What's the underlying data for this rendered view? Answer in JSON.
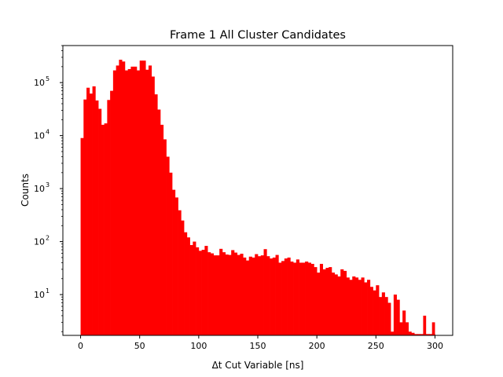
{
  "chart_data": {
    "type": "bar",
    "title": "Frame 1 All Cluster Candidates",
    "xlabel": "Δt Cut Variable [ns]",
    "ylabel": "Counts",
    "xlim": [
      -15,
      315
    ],
    "ylim": [
      1.7,
      500000
    ],
    "yscale": "log",
    "bin_width": 2.5,
    "bin_start": 0,
    "color": "#ff0000",
    "grid": false,
    "legend": "none",
    "x_ticks": [
      {
        "value": 0,
        "label": "0"
      },
      {
        "value": 50,
        "label": "50"
      },
      {
        "value": 100,
        "label": "100"
      },
      {
        "value": 150,
        "label": "150"
      },
      {
        "value": 200,
        "label": "200"
      },
      {
        "value": 250,
        "label": "250"
      },
      {
        "value": 300,
        "label": "300"
      }
    ],
    "y_ticks": [
      {
        "value": 10,
        "base": "10",
        "exp": "1"
      },
      {
        "value": 100,
        "base": "10",
        "exp": "2"
      },
      {
        "value": 1000,
        "base": "10",
        "exp": "3"
      },
      {
        "value": 10000,
        "base": "10",
        "exp": "4"
      },
      {
        "value": 100000,
        "base": "10",
        "exp": "5"
      }
    ],
    "values": [
      9000,
      48000,
      80000,
      62000,
      85000,
      46000,
      32000,
      16000,
      17000,
      47000,
      70000,
      170000,
      210000,
      270000,
      250000,
      170000,
      180000,
      200000,
      200000,
      170000,
      260000,
      260000,
      175000,
      210000,
      130000,
      60000,
      31000,
      16000,
      8500,
      4000,
      2000,
      950,
      680,
      390,
      250,
      150,
      120,
      86,
      100,
      78,
      67,
      70,
      83,
      63,
      60,
      55,
      55,
      73,
      63,
      57,
      56,
      69,
      62,
      56,
      59,
      50,
      44,
      52,
      50,
      58,
      53,
      55,
      72,
      53,
      48,
      50,
      56,
      40,
      43,
      48,
      50,
      42,
      40,
      46,
      40,
      40,
      42,
      40,
      38,
      33,
      26,
      38,
      30,
      32,
      33,
      26,
      24,
      22,
      30,
      28,
      21,
      19,
      22,
      21,
      19,
      21,
      17,
      19,
      14,
      12,
      15,
      9,
      11,
      9,
      7,
      2,
      10,
      8,
      3,
      5,
      3,
      2,
      1.9,
      1.8,
      1.8,
      1.8,
      1.8,
      1.8,
      1.8,
      1.8
    ],
    "sparse_tail": [
      {
        "x": 290,
        "value": 4
      },
      {
        "x": 297.5,
        "value": 3
      }
    ]
  }
}
